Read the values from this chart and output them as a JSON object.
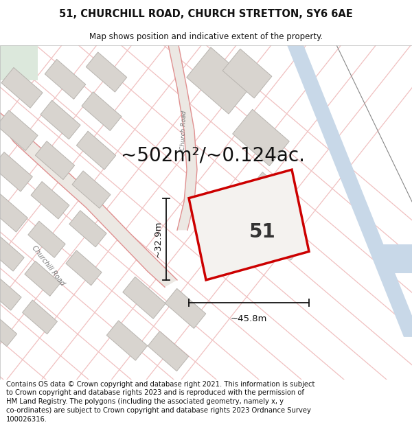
{
  "title": "51, CHURCHILL ROAD, CHURCH STRETTON, SY6 6AE",
  "subtitle": "Map shows position and indicative extent of the property.",
  "area_text": "~502m²/~0.124ac.",
  "property_number": "51",
  "dim_width": "~45.8m",
  "dim_height": "~32.9m",
  "footer_line1": "Contains OS data © Crown copyright and database right 2021. This information is subject",
  "footer_line2": "to Crown copyright and database rights 2023 and is reproduced with the permission of",
  "footer_line3": "HM Land Registry. The polygons (including the associated geometry, namely x, y",
  "footer_line4": "co-ordinates) are subject to Crown copyright and database rights 2023 Ordnance Survey",
  "footer_line5": "100026316.",
  "map_bg": "#f4f2ef",
  "road_pink": "#f0c0c0",
  "road_edge": "#e09090",
  "building_fill": "#d8d4cf",
  "building_edge": "#b8b4af",
  "property_fill": "#f4f2ef",
  "property_border": "#cc0000",
  "blue_fill": "#c8d8e8",
  "gray_line": "#aaaaaa",
  "green_fill": "#dce8dc",
  "title_fontsize": 10.5,
  "subtitle_fontsize": 8.5,
  "area_fontsize": 20,
  "number_fontsize": 20,
  "dim_fontsize": 9.5,
  "footer_fontsize": 7.2
}
